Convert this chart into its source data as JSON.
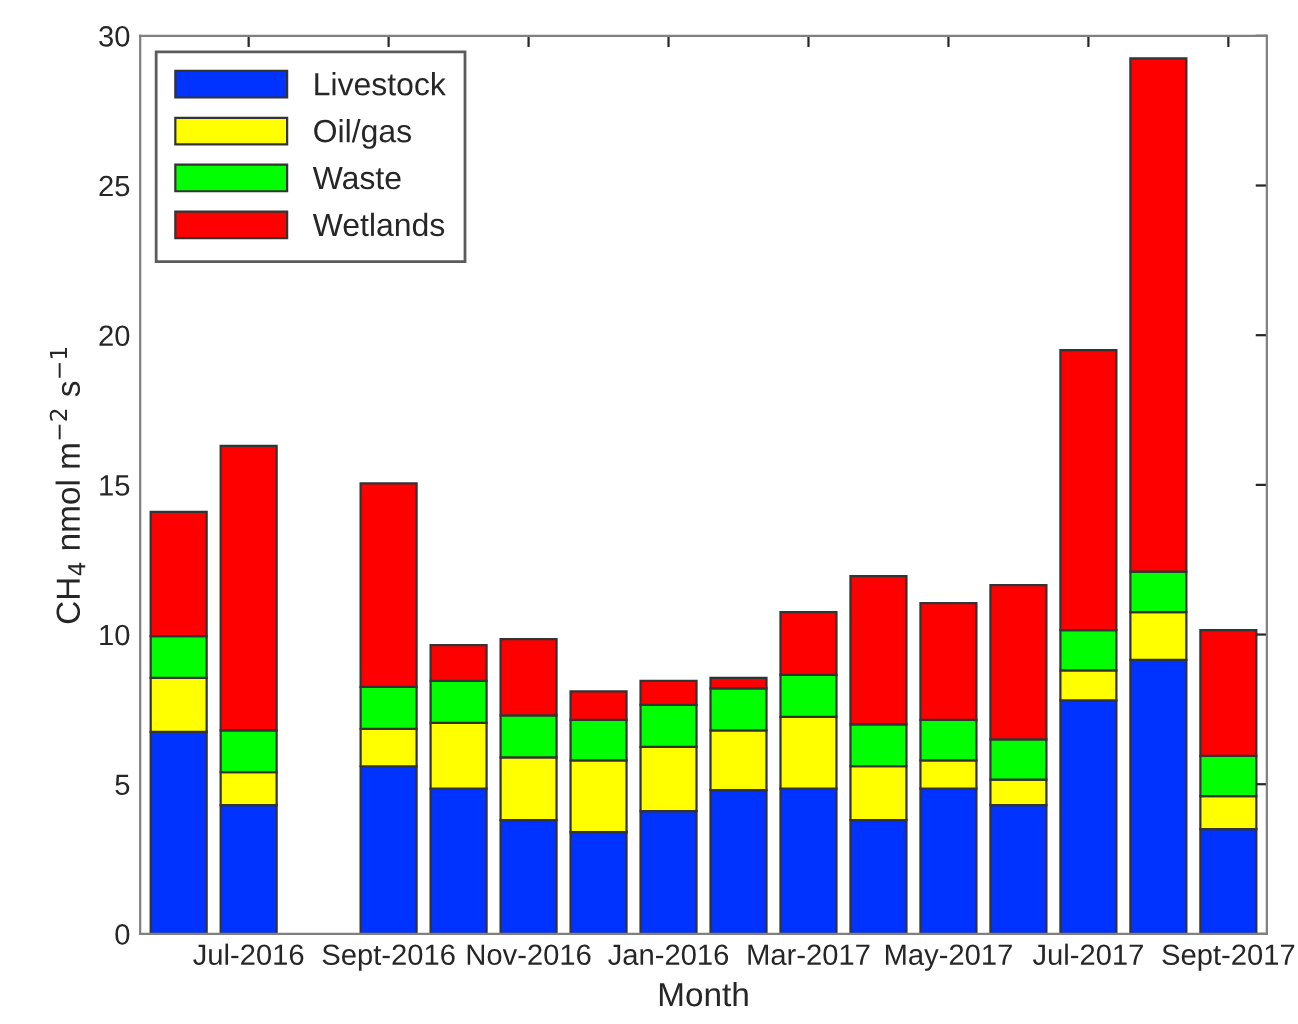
{
  "chart_data": {
    "type": "bar",
    "stacked": true,
    "xlabel": "Month",
    "ylabel": "CH$_{4}$ nmol m$^{−2}$ s$^{−1}$",
    "categories": [
      null,
      "Jul-2016",
      null,
      "Sept-2016",
      null,
      "Nov-2016",
      null,
      "Jan-2016",
      null,
      "Mar-2017",
      null,
      "May-2017",
      null,
      "Jul-2017",
      null,
      "Sept-2017"
    ],
    "series": [
      {
        "name": "Livestock",
        "color": "#0033ff",
        "values": [
          6.75,
          4.3,
          null,
          5.6,
          4.85,
          3.8,
          3.4,
          4.1,
          4.8,
          4.85,
          3.8,
          4.85,
          4.3,
          7.8,
          9.15,
          3.5
        ]
      },
      {
        "name": "Oil/gas",
        "color": "#ffff00",
        "values": [
          1.8,
          1.1,
          null,
          1.25,
          2.2,
          2.1,
          2.4,
          2.15,
          2.0,
          2.4,
          1.8,
          0.95,
          0.85,
          1.0,
          1.6,
          1.1
        ]
      },
      {
        "name": "Waste",
        "color": "#00ff00",
        "values": [
          1.4,
          1.4,
          null,
          1.4,
          1.4,
          1.4,
          1.35,
          1.4,
          1.4,
          1.4,
          1.4,
          1.35,
          1.35,
          1.35,
          1.35,
          1.35
        ]
      },
      {
        "name": "Wetlands",
        "color": "#ff0000",
        "values": [
          4.15,
          9.5,
          null,
          6.8,
          1.2,
          2.55,
          0.95,
          0.8,
          0.35,
          2.1,
          4.95,
          3.9,
          5.15,
          9.35,
          17.15,
          4.2
        ]
      }
    ],
    "ylim": [
      0,
      30
    ],
    "yticks": [
      0,
      5,
      10,
      15,
      20,
      25,
      30
    ],
    "grid": false,
    "legend": "top left"
  }
}
